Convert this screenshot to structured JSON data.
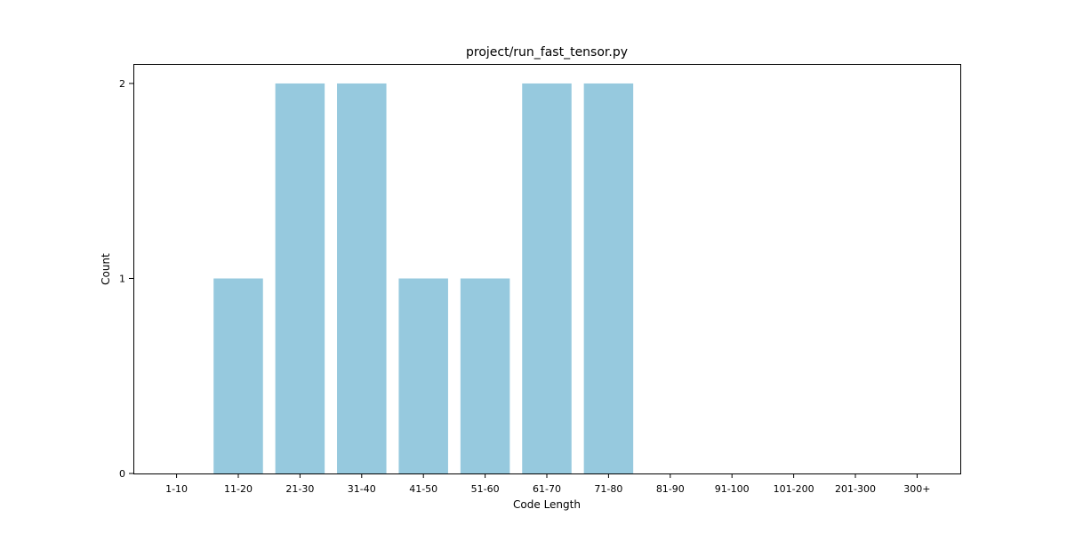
{
  "chart_data": {
    "type": "bar",
    "title": "project/run_fast_tensor.py",
    "xlabel": "Code Length",
    "ylabel": "Count",
    "categories": [
      "1-10",
      "11-20",
      "21-30",
      "31-40",
      "41-50",
      "51-60",
      "61-70",
      "71-80",
      "81-90",
      "91-100",
      "101-200",
      "201-300",
      "300+"
    ],
    "values": [
      0,
      1,
      2,
      2,
      1,
      1,
      2,
      2,
      0,
      0,
      0,
      0,
      0
    ],
    "yticks": [
      0,
      1,
      2
    ],
    "ylim": [
      0,
      2.1
    ],
    "grid": false,
    "bar_color": "#96c9de"
  }
}
